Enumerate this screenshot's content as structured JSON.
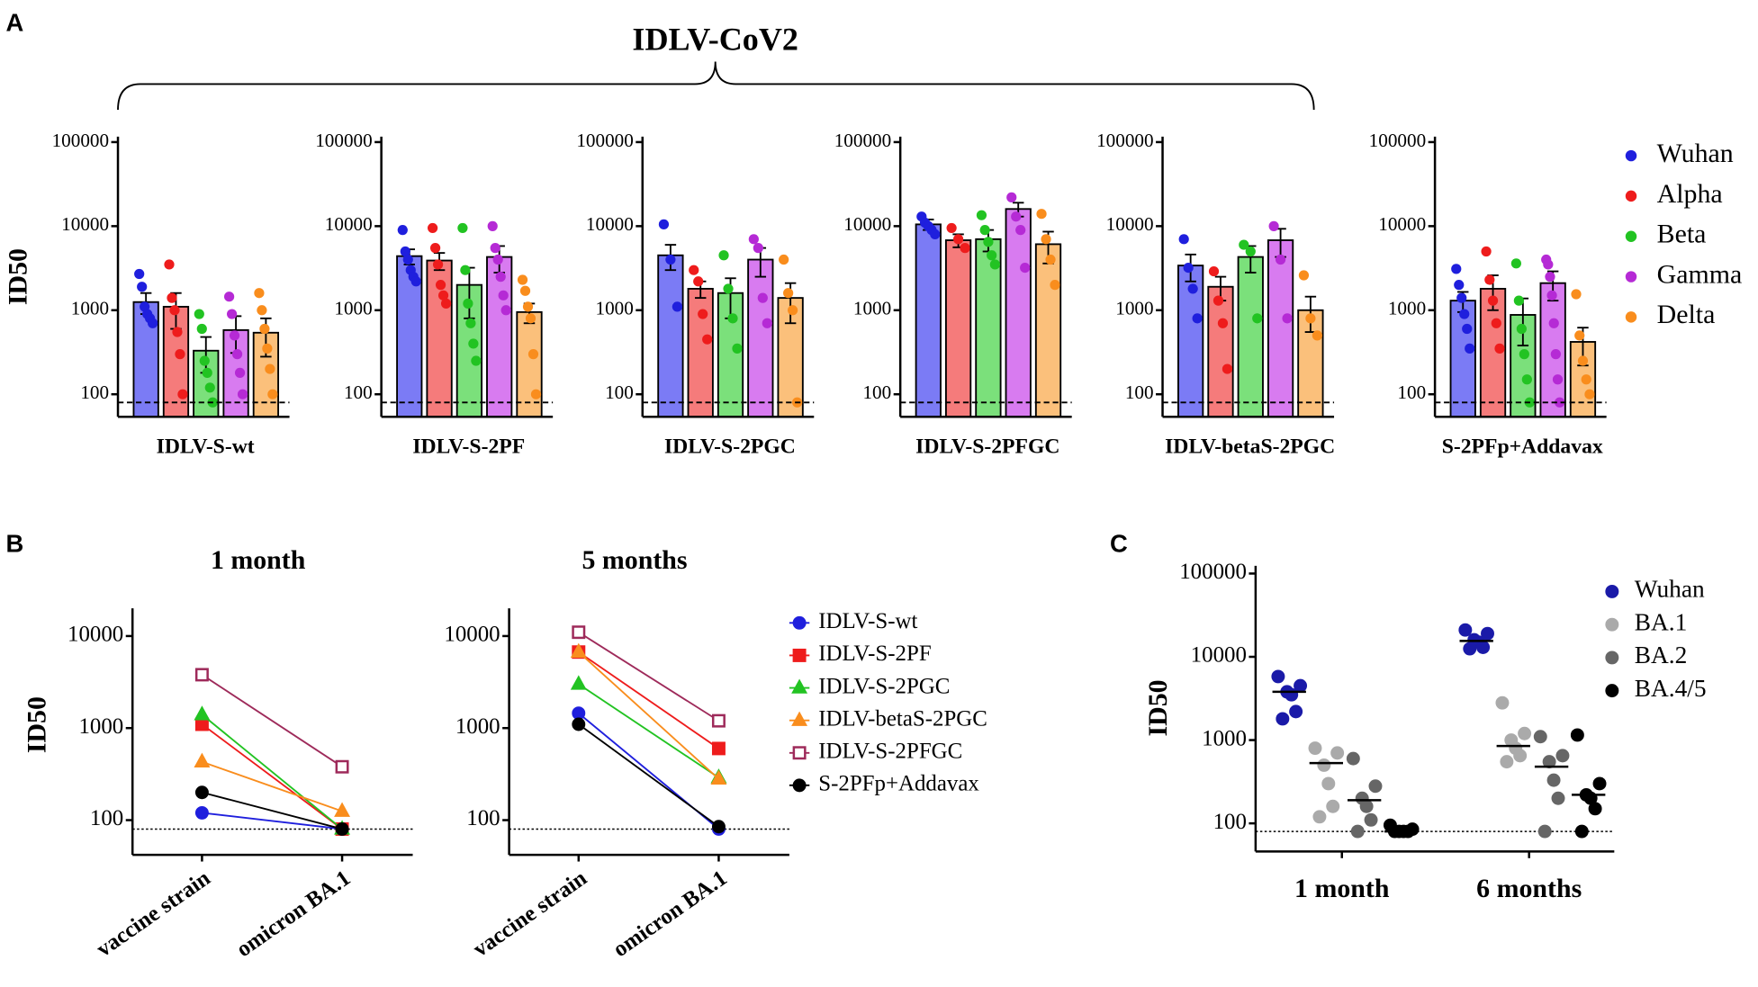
{
  "chart_data": [
    {
      "type": "bar",
      "panel": "A",
      "title": "IDLV-CoV2",
      "ylabel": "ID50",
      "log": true,
      "categories": [
        "IDLV-S-wt",
        "IDLV-S-2PF",
        "IDLV-S-2PGC",
        "IDLV-S-2PFGC",
        "IDLV-betaS-2PGC",
        "S-2PFp+Addavax"
      ],
      "ylim": [
        54,
        116000
      ],
      "yticks": [
        100,
        1000,
        10000,
        100000
      ],
      "threshold": 80,
      "series": [
        {
          "name": "Wuhan",
          "color": "#1f1fdd",
          "bar_color": "#7b7bf5",
          "values": [
            1250,
            4400,
            4500,
            10500,
            3400,
            1300
          ],
          "errors": [
            350,
            900,
            1500,
            1500,
            1200,
            350
          ],
          "points": [
            [
              2700,
              1900,
              1100,
              900,
              800,
              700
            ],
            [
              9000,
              5000,
              4000,
              3000,
              2500,
              2200
            ],
            [
              10500,
              4000,
              1100
            ],
            [
              13000,
              11000,
              10000,
              9000,
              8000
            ],
            [
              7000,
              3200,
              1800,
              800
            ],
            [
              3100,
              2000,
              1400,
              900,
              600,
              350
            ]
          ]
        },
        {
          "name": "Alpha",
          "color": "#ee1c1c",
          "bar_color": "#f57b7b",
          "values": [
            1100,
            3900,
            1800,
            6800,
            1900,
            1800
          ],
          "errors": [
            500,
            900,
            400,
            1200,
            600,
            800
          ],
          "points": [
            [
              3500,
              1400,
              1000,
              550,
              300,
              100
            ],
            [
              9500,
              5500,
              3500,
              2000,
              1500,
              1200
            ],
            [
              3000,
              2200,
              900,
              450
            ],
            [
              9500,
              7000,
              5500
            ],
            [
              2900,
              1300,
              700,
              200
            ],
            [
              5000,
              2300,
              1300,
              700,
              350
            ]
          ]
        },
        {
          "name": "Beta",
          "color": "#22c322",
          "bar_color": "#7be07b",
          "values": [
            330,
            2000,
            1600,
            7000,
            4300,
            880
          ],
          "errors": [
            150,
            1200,
            800,
            2000,
            1500,
            500
          ],
          "points": [
            [
              900,
              600,
              250,
              180,
              120,
              80
            ],
            [
              9500,
              3000,
              1200,
              700,
              400,
              250
            ],
            [
              4500,
              1800,
              800,
              350
            ],
            [
              13500,
              9000,
              6500,
              4500,
              3500
            ],
            [
              6000,
              5000,
              800
            ],
            [
              3600,
              1300,
              600,
              300,
              150,
              80
            ]
          ]
        },
        {
          "name": "Gamma",
          "color": "#b52ad5",
          "bar_color": "#d87bf0",
          "values": [
            580,
            4300,
            4000,
            16000,
            6800,
            2100
          ],
          "errors": [
            270,
            1500,
            1500,
            3000,
            2500,
            800
          ],
          "points": [
            [
              1450,
              900,
              500,
              300,
              180,
              100
            ],
            [
              10000,
              5500,
              4000,
              2500,
              1500,
              1000
            ],
            [
              7000,
              5500,
              1400,
              700
            ],
            [
              22000,
              13000,
              9000,
              3200
            ],
            [
              10000,
              4000,
              800
            ],
            [
              4000,
              3500,
              2500,
              1500,
              700,
              300,
              150,
              80
            ]
          ]
        },
        {
          "name": "Delta",
          "color": "#f98d1d",
          "bar_color": "#fbc07b",
          "values": [
            540,
            950,
            1400,
            6100,
            1000,
            420
          ],
          "errors": [
            260,
            250,
            700,
            2500,
            450,
            200
          ],
          "points": [
            [
              1600,
              1000,
              600,
              350,
              200,
              100
            ],
            [
              2300,
              1700,
              1100,
              800,
              300,
              100
            ],
            [
              4000,
              1600,
              1000,
              80
            ],
            [
              14000,
              7000,
              4000,
              2000
            ],
            [
              2600,
              800,
              500
            ],
            [
              1550,
              500,
              250,
              150,
              100
            ]
          ]
        }
      ]
    },
    {
      "type": "line",
      "panel": "B",
      "ylabel": "ID50",
      "log": true,
      "facets": [
        "1 month",
        "5 months"
      ],
      "categories": [
        "vaccine strain",
        "omicron BA.1"
      ],
      "ylim": [
        42,
        20000
      ],
      "yticks": [
        100,
        1000,
        10000
      ],
      "threshold": 80,
      "series": [
        {
          "name": "IDLV-S-wt",
          "color": "#1f1fdd",
          "marker": "circle",
          "filled": true,
          "values": [
            [
              120,
              80
            ],
            [
              1450,
              80
            ]
          ]
        },
        {
          "name": "IDLV-S-2PF",
          "color": "#ee1c1c",
          "marker": "square",
          "filled": true,
          "values": [
            [
              1100,
              80
            ],
            [
              6700,
              600
            ]
          ]
        },
        {
          "name": "IDLV-S-2PGC",
          "color": "#22c322",
          "marker": "triangle",
          "filled": true,
          "values": [
            [
              1400,
              80
            ],
            [
              3000,
              290
            ]
          ]
        },
        {
          "name": "IDLV-betaS-2PGC",
          "color": "#f98d1d",
          "marker": "triangle",
          "filled": true,
          "values": [
            [
              430,
              125
            ],
            [
              6700,
              280
            ]
          ]
        },
        {
          "name": "IDLV-S-2PFGC",
          "color": "#9e2a5a",
          "marker": "square",
          "filled": false,
          "values": [
            [
              3800,
              380
            ],
            [
              11000,
              1200
            ]
          ]
        },
        {
          "name": "S-2PFp+Addavax",
          "color": "#000000",
          "marker": "circle",
          "filled": true,
          "values": [
            [
              200,
              80
            ],
            [
              1100,
              85
            ]
          ]
        }
      ]
    },
    {
      "type": "dot",
      "panel": "C",
      "ylabel": "ID50",
      "log": true,
      "categories": [
        "1 month",
        "6 months"
      ],
      "ylim": [
        46,
        124000
      ],
      "yticks": [
        100,
        1000,
        10000,
        100000
      ],
      "threshold": 80,
      "series": [
        {
          "name": "Wuhan",
          "color": "#1a1aa8",
          "values": [
            [
              5800,
              4500,
              3800,
              3500,
              2200,
              1800
            ],
            [
              21000,
              19000,
              16000,
              15000,
              13000,
              12500
            ]
          ],
          "medians": [
            3800,
            15500
          ]
        },
        {
          "name": "BA.1",
          "color": "#aaaaaa",
          "values": [
            [
              800,
              700,
              500,
              300,
              160,
              120
            ],
            [
              2800,
              1200,
              1000,
              800,
              650,
              550
            ]
          ],
          "medians": [
            530,
            850
          ]
        },
        {
          "name": "BA.2",
          "color": "#666666",
          "values": [
            [
              600,
              280,
              200,
              160,
              110,
              80
            ],
            [
              1100,
              650,
              550,
              330,
              200,
              80
            ]
          ],
          "medians": [
            190,
            480
          ]
        },
        {
          "name": "BA.4/5",
          "color": "#000000",
          "values": [
            [
              95,
              85,
              80,
              80,
              80,
              80
            ],
            [
              1150,
              300,
              220,
              200,
              150,
              80
            ]
          ],
          "medians": [
            80,
            220
          ]
        }
      ]
    }
  ]
}
